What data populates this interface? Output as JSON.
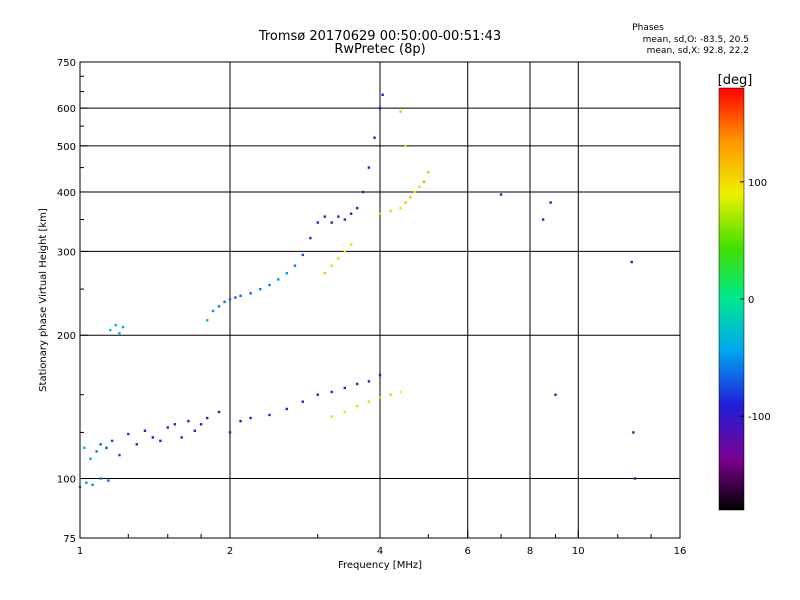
{
  "chart_data": {
    "type": "scatter",
    "title": "Tromsø 20170629 00:50:00-00:51:43",
    "subtitle": "RwPretec (8p)",
    "xlabel": "Frequency [MHz]",
    "ylabel": "Stationary phase Virtual Height [km]",
    "x_scale": "log",
    "y_scale": "log",
    "xlim": [
      1,
      16
    ],
    "ylim": [
      75,
      750
    ],
    "x_ticks": [
      1,
      2,
      4,
      6,
      8,
      10,
      16
    ],
    "y_ticks": [
      75,
      100,
      200,
      300,
      400,
      500,
      600,
      750
    ],
    "grid": true,
    "stats": {
      "heading": "Phases",
      "line_o": "mean, sd,O: -83.5, 20.5",
      "line_x": "mean, sd,X:  92.8, 22.2"
    },
    "colorbar": {
      "label": "[deg]",
      "range": [
        -180,
        180
      ],
      "ticks": [
        100,
        0,
        -100
      ],
      "colormap": "rainbow"
    },
    "series": [
      {
        "x": [
          1.02,
          1.05,
          1.08,
          1.1,
          1.13,
          1.16,
          1.2,
          1.25,
          1.3,
          1.35,
          1.4,
          1.45,
          1.5,
          1.55,
          1.6,
          1.65,
          1.7,
          1.75,
          1.8,
          1.9,
          2.0,
          2.1,
          2.2,
          2.4,
          2.6,
          2.8,
          3.0,
          3.2,
          3.4,
          3.6,
          3.8,
          4.0
        ],
        "y": [
          116,
          110,
          114,
          118,
          116,
          120,
          112,
          124,
          118,
          126,
          122,
          120,
          128,
          130,
          122,
          132,
          126,
          130,
          134,
          138,
          125,
          132,
          134,
          136,
          140,
          145,
          150,
          152,
          155,
          158,
          160,
          165
        ],
        "phase": [
          -40,
          -45,
          -60,
          -70,
          -75,
          -80,
          -82,
          -85,
          -88,
          -90,
          -92,
          -95,
          -90,
          -92,
          -95,
          -98,
          -100,
          -95,
          -98,
          -100,
          -95,
          -100,
          -102,
          -100,
          -105,
          -110,
          -108,
          -112,
          -110,
          -115,
          -112,
          -110
        ]
      },
      {
        "x": [
          1.0,
          1.03,
          1.06,
          1.1,
          1.14
        ],
        "y": [
          96,
          98,
          97,
          100,
          99
        ],
        "phase": [
          -45,
          -50,
          -55,
          -60,
          -65
        ]
      },
      {
        "x": [
          1.15,
          1.18,
          1.2,
          1.22
        ],
        "y": [
          205,
          210,
          202,
          208
        ],
        "phase": [
          -35,
          -40,
          -38,
          -42
        ]
      },
      {
        "x": [
          1.8,
          1.85,
          1.9,
          1.95,
          2.0,
          2.05,
          2.1,
          2.2,
          2.3,
          2.4,
          2.5,
          2.6,
          2.7,
          2.8,
          2.9,
          3.0,
          3.1,
          3.2,
          3.3,
          3.4,
          3.5,
          3.6,
          3.7,
          3.8,
          3.9,
          4.0,
          4.05
        ],
        "y": [
          215,
          225,
          230,
          235,
          238,
          240,
          242,
          245,
          250,
          255,
          262,
          270,
          280,
          295,
          320,
          345,
          355,
          345,
          355,
          350,
          360,
          370,
          400,
          450,
          520,
          600,
          640
        ],
        "phase": [
          -40,
          -50,
          -60,
          -65,
          -70,
          -72,
          -70,
          -68,
          -60,
          -55,
          -50,
          -45,
          -60,
          -75,
          -90,
          -105,
          -110,
          -112,
          -115,
          -110,
          -112,
          -115,
          -118,
          -120,
          -115,
          -112,
          -110
        ]
      },
      {
        "x": [
          3.1,
          3.2,
          3.3,
          3.4,
          3.5
        ],
        "y": [
          270,
          280,
          290,
          300,
          310
        ],
        "phase": [
          110,
          100,
          105,
          95,
          100
        ]
      },
      {
        "x": [
          4.0,
          4.2,
          4.4,
          4.5,
          4.6,
          4.7,
          4.8,
          4.9,
          5.0,
          4.5,
          4.4
        ],
        "y": [
          360,
          365,
          370,
          380,
          390,
          400,
          410,
          420,
          440,
          500,
          590
        ],
        "phase": [
          110,
          105,
          100,
          120,
          115,
          95,
          100,
          130,
          110,
          80,
          70
        ]
      },
      {
        "x": [
          3.2,
          3.4,
          3.6,
          3.8,
          4.0,
          4.2,
          4.4
        ],
        "y": [
          135,
          138,
          142,
          145,
          148,
          150,
          152
        ],
        "phase": [
          100,
          95,
          105,
          100,
          110,
          105,
          95
        ]
      },
      {
        "x": [
          7.0,
          8.5,
          8.8,
          9.0,
          12.8,
          12.9,
          13.0
        ],
        "y": [
          395,
          350,
          380,
          150,
          285,
          125,
          100
        ],
        "phase": [
          -120,
          -115,
          -118,
          -122,
          -120,
          -115,
          -125
        ]
      }
    ]
  }
}
